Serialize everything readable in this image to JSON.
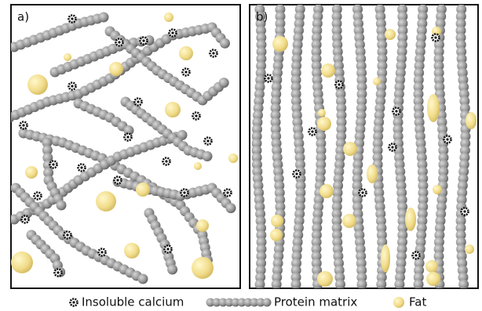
{
  "panels": [
    {
      "label": "a)"
    },
    {
      "label": "b)"
    }
  ],
  "legend": [
    {
      "label": "Insoluble calcium"
    },
    {
      "label": "Protein matrix"
    },
    {
      "label": "Fat"
    }
  ]
}
